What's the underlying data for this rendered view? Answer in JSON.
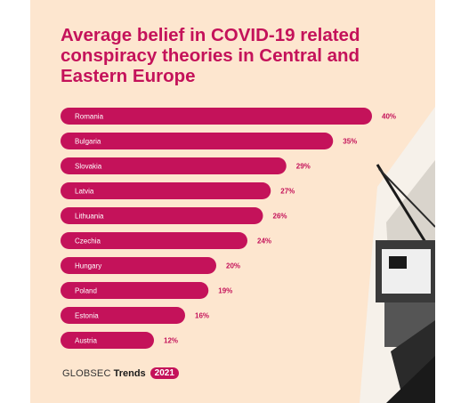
{
  "header": {
    "title": "Average belief in COVID-19 related conspiracy theories in Central and Eastern Europe"
  },
  "footer": {
    "brand": "GLOBSEC",
    "trends": "Trends",
    "year": "2021"
  },
  "colors": {
    "accent": "#c4125a",
    "background": "#fde6cf"
  },
  "chart_data": {
    "type": "bar",
    "orientation": "horizontal",
    "categories": [
      "Romania",
      "Bulgaria",
      "Slovakia",
      "Latvia",
      "Lithuania",
      "Czechia",
      "Hungary",
      "Poland",
      "Estonia",
      "Austria"
    ],
    "values": [
      40,
      35,
      29,
      27,
      26,
      24,
      20,
      19,
      16,
      12
    ],
    "value_labels": [
      "40%",
      "35%",
      "29%",
      "27%",
      "26%",
      "24%",
      "20%",
      "19%",
      "16%",
      "12%"
    ],
    "unit": "%",
    "title": "Average belief in COVID-19 related conspiracy theories in Central and Eastern Europe",
    "xlabel": "",
    "ylabel": "",
    "xlim": [
      0,
      40
    ],
    "grid": false,
    "legend": "none"
  }
}
